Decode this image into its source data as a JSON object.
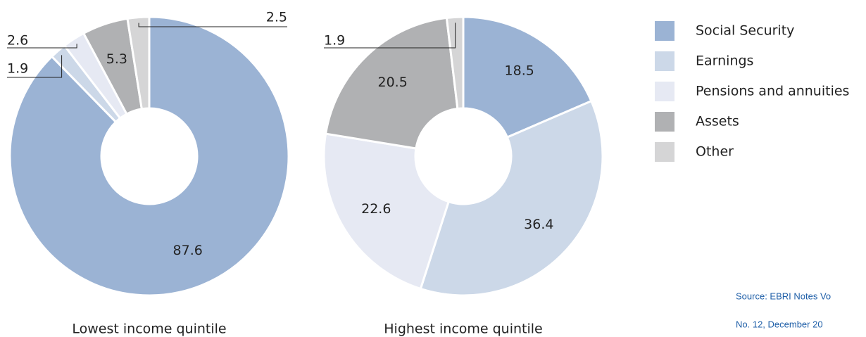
{
  "chart_data": [
    {
      "type": "donut",
      "title": "Lowest income quintile",
      "categories": [
        "Social Security",
        "Earnings",
        "Pensions and annuities",
        "Assets",
        "Other"
      ],
      "values": [
        87.6,
        1.9,
        2.6,
        5.3,
        2.5
      ],
      "colors": [
        "#9bb3d4",
        "#ccd8e8",
        "#e6e9f3",
        "#b0b1b3",
        "#d5d5d6"
      ]
    },
    {
      "type": "donut",
      "title": "Highest income quintile",
      "categories": [
        "Social Security",
        "Earnings",
        "Pensions and annuities",
        "Assets",
        "Other"
      ],
      "values": [
        18.5,
        36.4,
        22.6,
        20.5,
        1.9
      ],
      "colors": [
        "#9bb3d4",
        "#ccd8e8",
        "#e6e9f3",
        "#b0b1b3",
        "#d5d5d6"
      ]
    }
  ],
  "source": [
    "Source: EBRI Notes Vo",
    "No. 12, December 20"
  ]
}
